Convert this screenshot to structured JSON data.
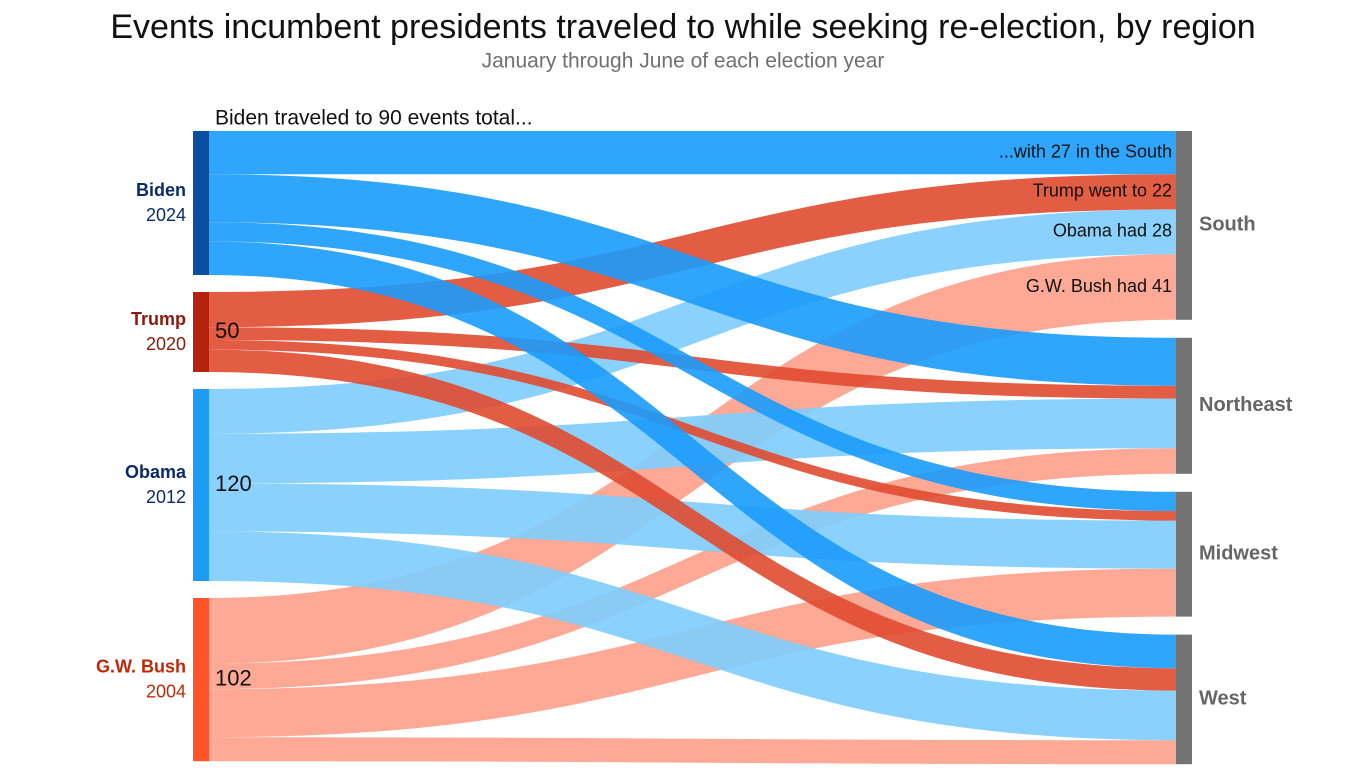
{
  "chart_data": {
    "type": "sankey",
    "title": "Events incumbent presidents traveled to while seeking re-election, by region",
    "subtitle": "January through June of each election year",
    "annotation": "Biden traveled to 90 events total...",
    "categories": [
      "South",
      "Northeast",
      "Midwest",
      "West"
    ],
    "target_color": "#737373",
    "series": [
      {
        "name": "Biden",
        "label": "2024",
        "color": "#1a9bfc",
        "node_color": "#0b4fa0",
        "label_color": "#0b2a6b",
        "note": "...with 27 in the South",
        "values": [
          27,
          30,
          12,
          21
        ]
      },
      {
        "name": "Trump",
        "label": "2020",
        "color": "#e04a30",
        "node_color": "#b5230f",
        "label_color": "#8b1a0a",
        "note": "Trump went to 22",
        "total": 50,
        "values": [
          22,
          8,
          6,
          14
        ]
      },
      {
        "name": "Obama",
        "label": "2012",
        "color": "#7dcdfd",
        "node_color": "#1e9bf5",
        "label_color": "#0b2a6b",
        "note": "Obama had 28",
        "total": 120,
        "values": [
          28,
          31,
          30,
          31
        ]
      },
      {
        "name": "G.W. Bush",
        "label": "2004",
        "color": "#fda08a",
        "node_color": "#ff5226",
        "label_color": "#c0280a",
        "note": "G.W. Bush had 41",
        "total": 102,
        "values": [
          41,
          16,
          30,
          15
        ]
      }
    ]
  }
}
